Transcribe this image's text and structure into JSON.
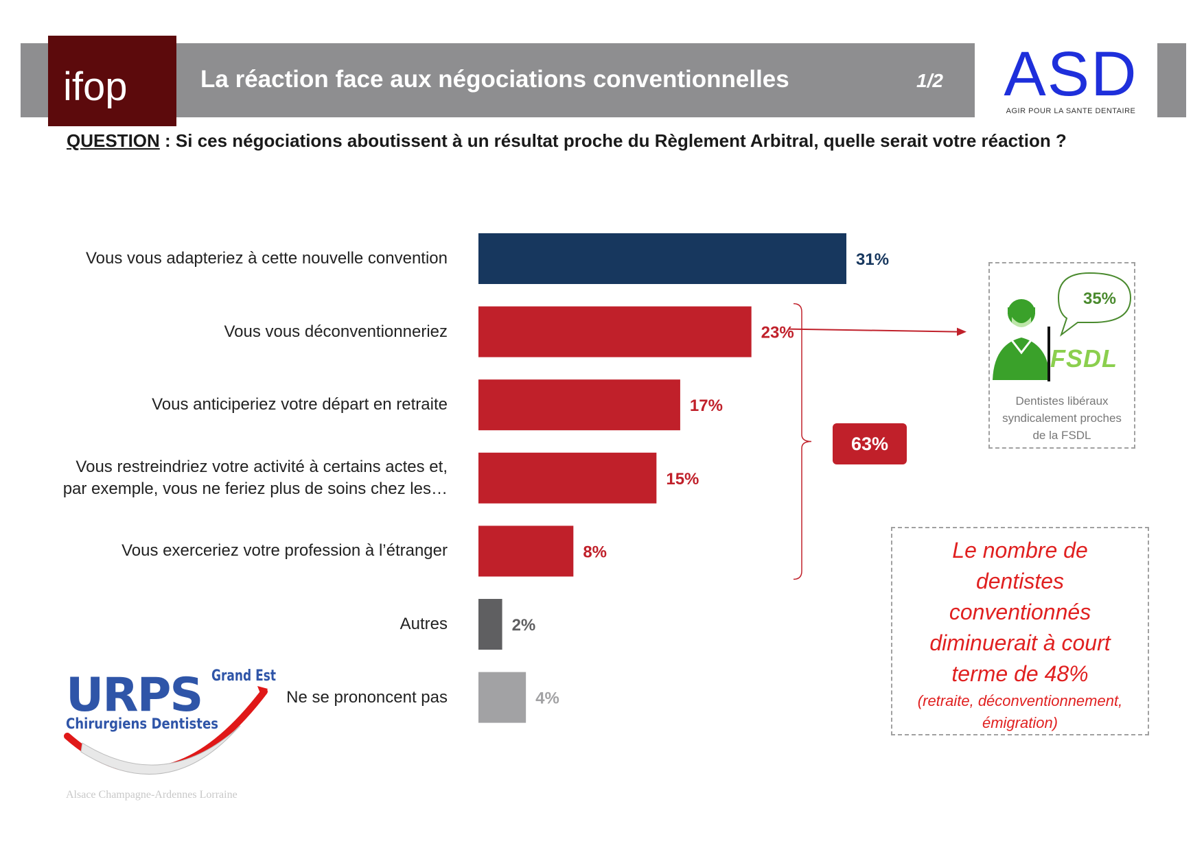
{
  "header": {
    "title": "La réaction face aux négociations conventionnelles",
    "page": "1/2",
    "ifop_logo_text": "ifop",
    "asd_logo": {
      "name": "ASD",
      "tagline": "AGIR POUR LA SANTE DENTAIRE"
    }
  },
  "question": {
    "label": "QUESTION",
    "text": " : Si ces négociations aboutissent à un résultat proche du Règlement Arbitral, quelle serait votre réaction ?"
  },
  "chart_data": {
    "type": "bar",
    "orientation": "horizontal",
    "categories": [
      "Vous vous adapteriez à cette nouvelle convention",
      "Vous vous déconventionneriez",
      "Vous anticiperiez votre départ en retraite",
      "Vous restreindriez votre activité à certains actes et,\npar exemple, vous ne feriez plus de soins chez les…",
      "Vous exerceriez votre profession à l’étranger",
      "Autres",
      "Ne se prononcent pas"
    ],
    "values": [
      31,
      23,
      17,
      15,
      8,
      2,
      4
    ],
    "value_labels": [
      "31%",
      "23%",
      "17%",
      "15%",
      "8%",
      "2%",
      "4%"
    ],
    "unit": "%",
    "colors": [
      "#17375e",
      "#c0202a",
      "#c0202a",
      "#c0202a",
      "#c0202a",
      "#5f5f61",
      "#a2a2a4"
    ],
    "xlim": [
      0,
      35
    ],
    "grid": false,
    "bracket_total": {
      "label": "63%",
      "from_category": 1,
      "to_category": 4
    }
  },
  "fsdl_callout": {
    "value": "35%",
    "brand": "FSDL",
    "caption_lines": [
      "Dentistes libéraux",
      "syndicalement proches",
      "de la FSDL"
    ],
    "person_icon": "masked-dentist-icon",
    "accent_color": "#4a8a2e"
  },
  "note": {
    "main_lines": [
      "Le nombre de",
      "dentistes",
      "conventionnés",
      "diminuerait à court",
      "terme de 48%"
    ],
    "sub_lines": [
      "(retraite, déconventionnement,",
      "émigration)"
    ],
    "color": "#e02020"
  },
  "urps_logo": {
    "title": "URPS",
    "region": "Grand Est",
    "subtitle": "Chirurgiens Dentistes",
    "footer": "Alsace Champagne-Ardennes Lorraine"
  }
}
